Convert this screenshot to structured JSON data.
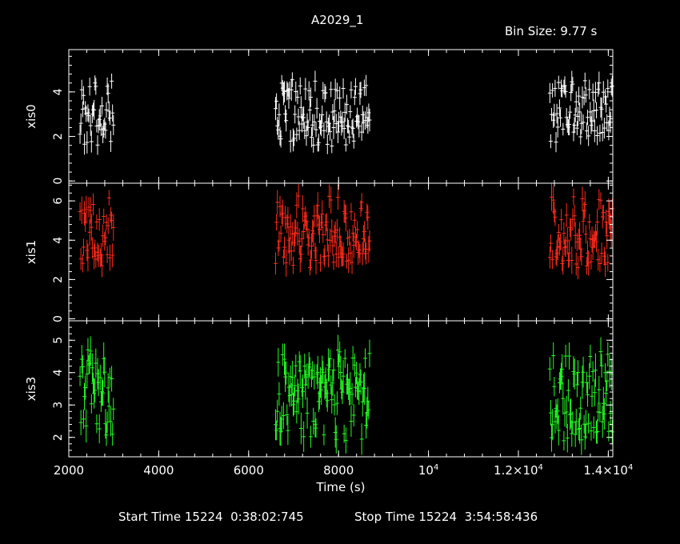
{
  "header": {
    "title": "A2029_1",
    "bin_size": "Bin Size: 9.77 s"
  },
  "footer": {
    "start_label": "Start Time 15224  0:38:02:745",
    "stop_label": "Stop Time 15224  3:54:58:436"
  },
  "chart_data": {
    "type": "scatter",
    "title": "A2029_1",
    "xlabel": "Time (s)",
    "xlim": [
      2000,
      14100
    ],
    "x_ticks": [
      {
        "value": 2000,
        "label": "2000"
      },
      {
        "value": 4000,
        "label": "4000"
      },
      {
        "value": 6000,
        "label": "6000"
      },
      {
        "value": 8000,
        "label": "8000"
      },
      {
        "value": 10000,
        "label": "10",
        "sup": "4"
      },
      {
        "value": 12000,
        "label": "1.2×10",
        "sup": "4"
      },
      {
        "value": 14000,
        "label": "1.4×10",
        "sup": "4"
      }
    ],
    "x_segments": [
      [
        2250,
        3000
      ],
      [
        6600,
        8700
      ],
      [
        12700,
        14100
      ]
    ],
    "panels": [
      {
        "name": "xis0",
        "ylabel": "xis0",
        "color": "#ffffff",
        "ylim": [
          -0.1,
          5.9
        ],
        "y_ticks": [
          0,
          2,
          4
        ],
        "mean": 3.2,
        "spread": 0.85,
        "err": 0.4,
        "samples": [
          2.6,
          3.9,
          1.8,
          4.3,
          2.9,
          3.4,
          2.2,
          4.0,
          3.1,
          2.5
        ]
      },
      {
        "name": "xis1",
        "ylabel": "xis1",
        "color": "#ff2a1a",
        "ylim": [
          -0.1,
          6.9
        ],
        "y_ticks": [
          0,
          2,
          4,
          6
        ],
        "mean": 4.4,
        "spread": 1.0,
        "err": 0.55,
        "samples": [
          3.9,
          5.2,
          3.4,
          4.8,
          6.1,
          3.1,
          4.5,
          5.5,
          2.9,
          4.2
        ]
      },
      {
        "name": "xis3",
        "ylabel": "xis3",
        "color": "#22ff22",
        "ylim": [
          1.4,
          5.6
        ],
        "y_ticks": [
          2,
          3,
          4,
          5
        ],
        "mean": 3.4,
        "spread": 0.7,
        "err": 0.4,
        "samples": [
          2.9,
          4.1,
          2.3,
          3.7,
          4.5,
          2.6,
          3.3,
          3.9,
          2.1,
          3.5
        ]
      }
    ]
  }
}
